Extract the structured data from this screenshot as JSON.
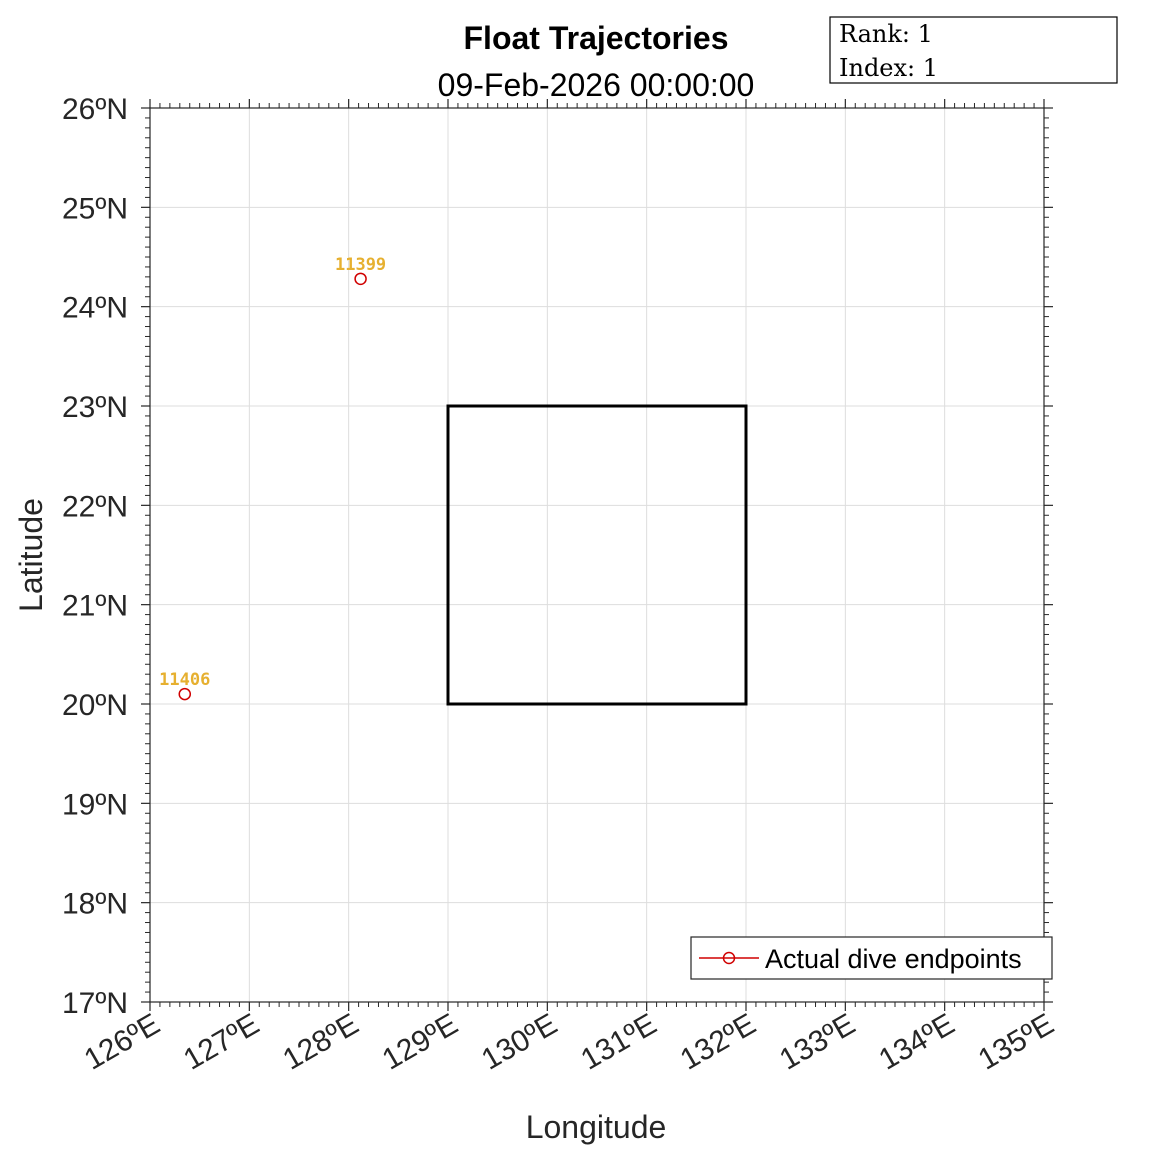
{
  "chart_data": {
    "type": "scatter",
    "title": "Float Trajectories",
    "subtitle": "09-Feb-2026 00:00:00",
    "xlabel": "Longitude",
    "ylabel": "Latitude",
    "xlim": [
      126,
      135
    ],
    "ylim": [
      17,
      26
    ],
    "x_ticks": [
      126,
      127,
      128,
      129,
      130,
      131,
      132,
      133,
      134,
      135
    ],
    "y_ticks": [
      17,
      18,
      19,
      20,
      21,
      22,
      23,
      24,
      25,
      26
    ],
    "x_tick_labels": [
      "126ºE",
      "127ºE",
      "128ºE",
      "129ºE",
      "130ºE",
      "131ºE",
      "132ºE",
      "133ºE",
      "134ºE",
      "135ºE"
    ],
    "y_tick_labels": [
      "17ºN",
      "18ºN",
      "19ºN",
      "20ºN",
      "21ºN",
      "22ºN",
      "23ºN",
      "24ºN",
      "25ºN",
      "26ºN"
    ],
    "grid": true,
    "series": [
      {
        "name": "Actual dive endpoints",
        "color": "#d00000",
        "marker": "open-circle",
        "points": [
          {
            "lon": 128.12,
            "lat": 24.28,
            "label": "11399"
          },
          {
            "lon": 126.35,
            "lat": 20.1,
            "label": "11406"
          }
        ]
      }
    ],
    "region_box": {
      "lon_min": 129,
      "lon_max": 132,
      "lat_min": 20,
      "lat_max": 23,
      "color": "#000000"
    },
    "point_label_color": "#e6b030",
    "legend": {
      "location": "bottom-right",
      "entries": [
        "Actual dive endpoints"
      ]
    }
  },
  "info_box": {
    "rank_text": "Rank: 1",
    "index_text": "Index: 1"
  }
}
